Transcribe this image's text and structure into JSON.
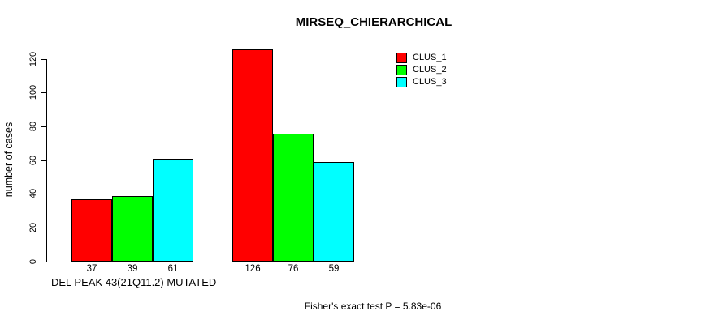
{
  "chart_data": {
    "type": "bar",
    "title": "MIRSEQ_CHIERARCHICAL",
    "ylabel": "number of cases",
    "xlabel": "DEL PEAK 43(21Q11.2) MUTATED",
    "annotation": "Fisher's exact test P = 5.83e-06",
    "ylim": [
      0,
      120
    ],
    "yticks": [
      0,
      20,
      40,
      60,
      80,
      100,
      120
    ],
    "grid": false,
    "legend_position": "top-right",
    "series": [
      {
        "name": "CLUS_1",
        "color": "#ff0000",
        "values": [
          37,
          126
        ]
      },
      {
        "name": "CLUS_2",
        "color": "#00ff00",
        "values": [
          39,
          76
        ]
      },
      {
        "name": "CLUS_3",
        "color": "#00ffff",
        "values": [
          61,
          59
        ]
      }
    ],
    "bar_value_labels": [
      [
        "37",
        "39",
        "61"
      ],
      [
        "126",
        "76",
        "59"
      ]
    ]
  }
}
